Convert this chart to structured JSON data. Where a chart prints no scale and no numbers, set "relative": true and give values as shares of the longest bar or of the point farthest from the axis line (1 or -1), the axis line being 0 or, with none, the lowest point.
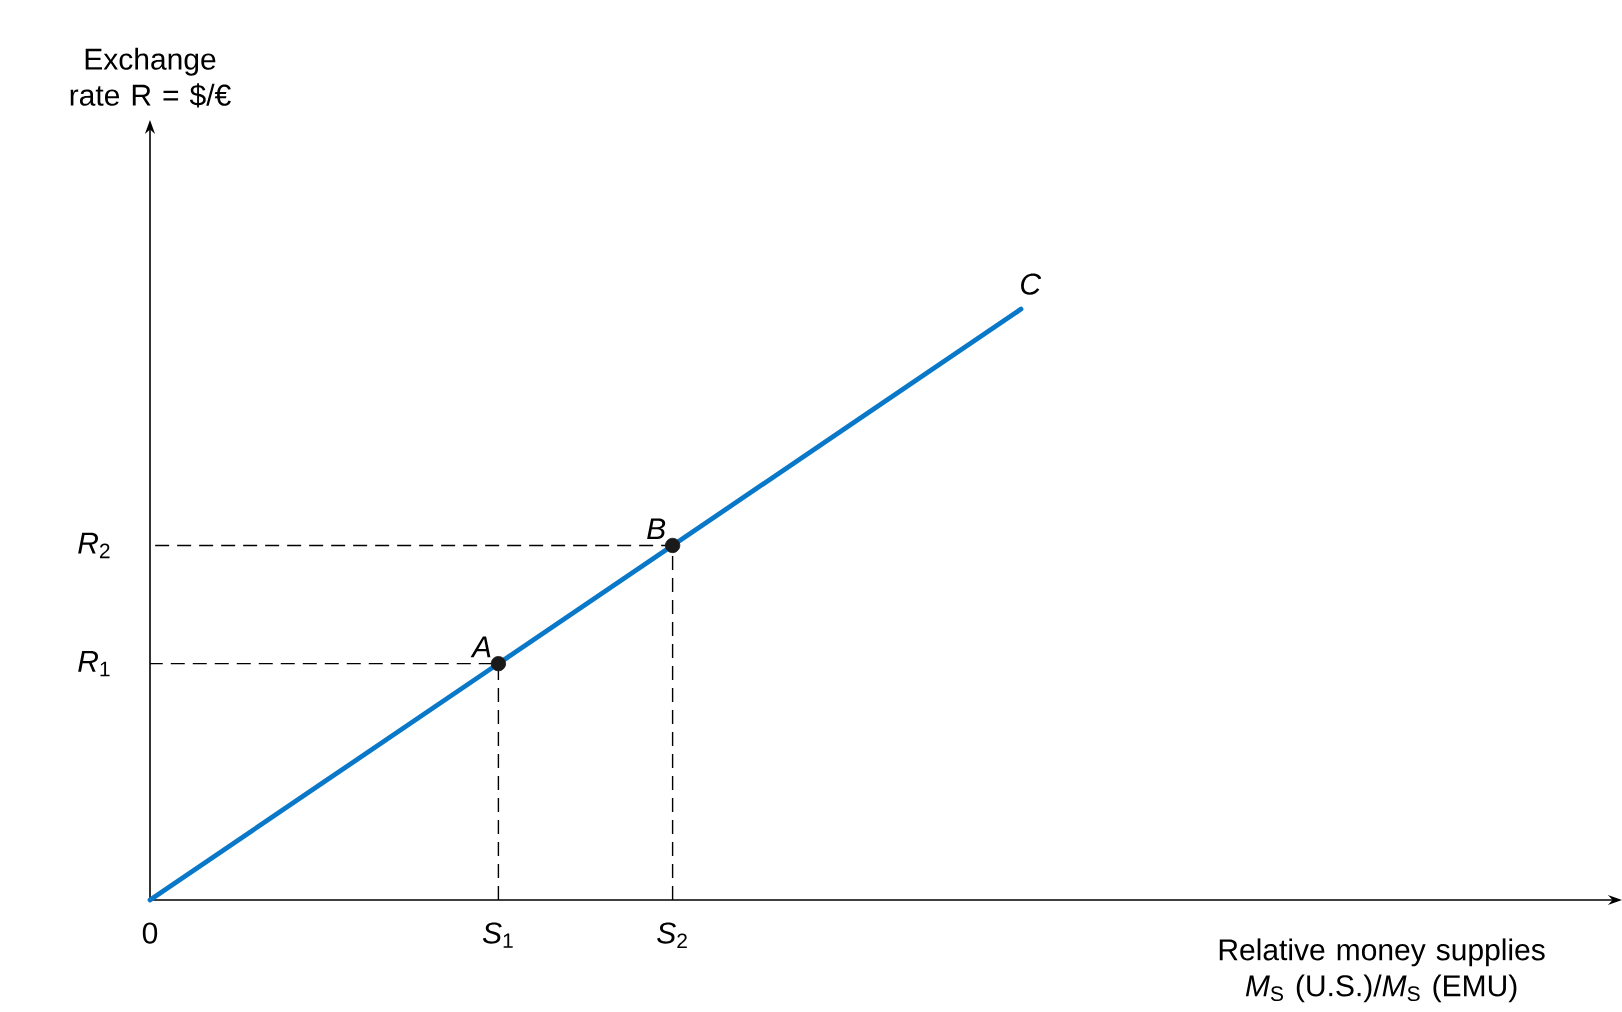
{
  "chart_data": {
    "type": "line",
    "relative": true,
    "xlabel": "Relative money supplies *M*$_{S}$ (U.S.)/*M*$_{S}$ (EMU)",
    "categories": [
      "0",
      null,
      "*S*$_{1}$",
      "*S*$_{2}$",
      null,
      null,
      null,
      null,
      null
    ],
    "series": [
      {
        "color": "#0a78c8",
        "values": [
          0,
          0.2,
          0.4,
          0.6,
          0.8,
          1,
          null,
          null,
          null
        ]
      },
      {
        "type": "scatter",
        "color": "#1a1a1a",
        "marker": "circle",
        "values": [
          null,
          null,
          0.4,
          0.6,
          null,
          null,
          null,
          null,
          null
        ]
      }
    ],
    "annotations": [
      "*R*$_{1}$",
      "*R*$_{2}$",
      "A",
      "B",
      "C",
      "Exchange rate R = $/€"
    ]
  }
}
